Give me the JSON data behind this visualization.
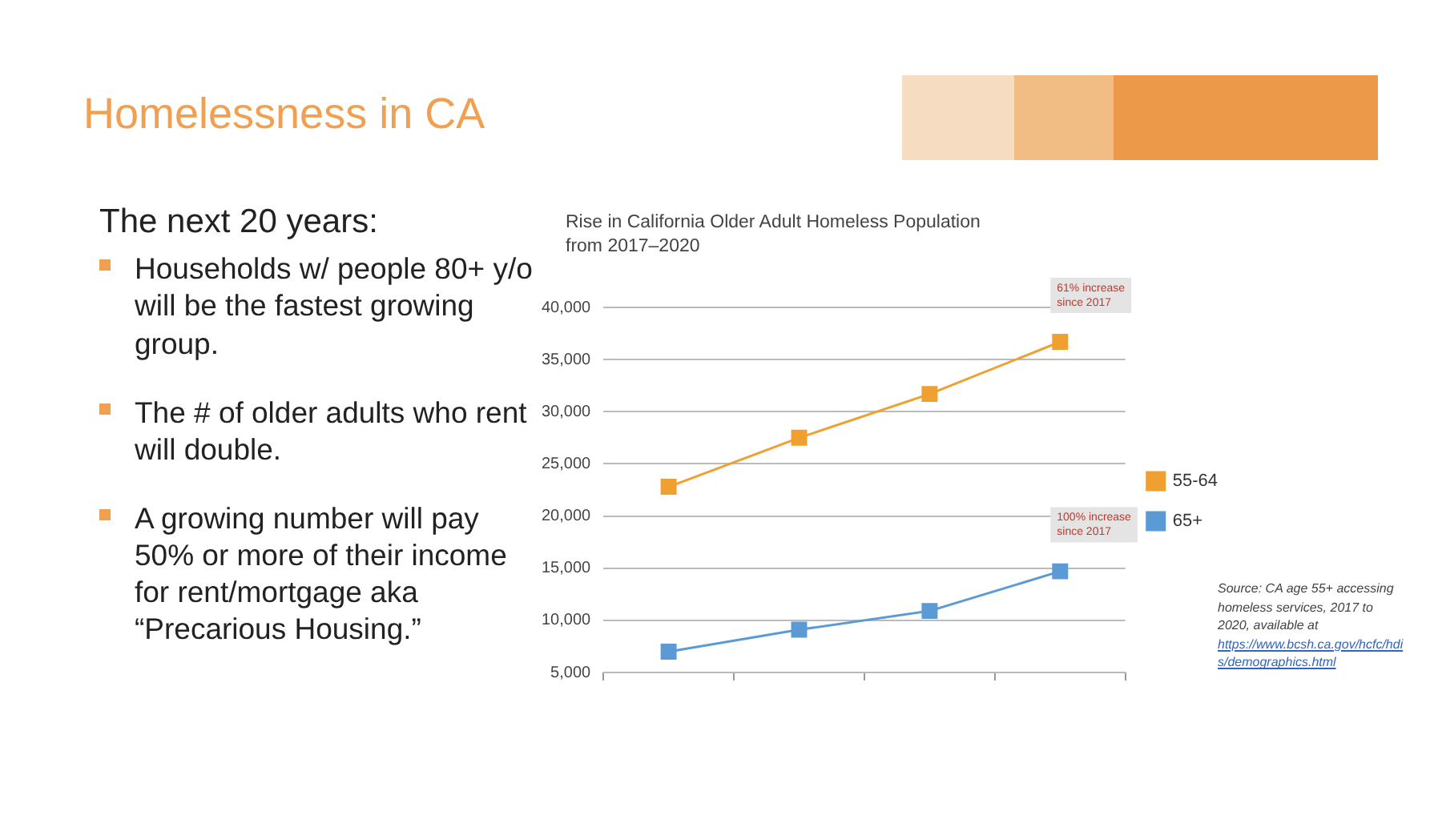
{
  "chart_data": {
    "type": "line",
    "title": "Homelessness in CA",
    "subtitle": "Rise in California Older Adult Homeless Population from 2017–2020",
    "categories": [
      null,
      null,
      null,
      null
    ],
    "series": [
      {
        "name": "55-64",
        "color": "#f0a030",
        "values": [
          22800,
          27500,
          31700,
          36700
        ]
      },
      {
        "name": "65+",
        "color": "#5b9bd5",
        "values": [
          7000,
          9100,
          10900,
          14700
        ]
      }
    ],
    "ylim": [
      5000,
      40000
    ],
    "yticks": [
      {
        "value": 5000,
        "label": "5,000"
      },
      {
        "value": 10000,
        "label": "10,000"
      },
      {
        "value": 15000,
        "label": "15,000"
      },
      {
        "value": 20000,
        "label": "20,000"
      },
      {
        "value": 25000,
        "label": "25,000"
      },
      {
        "value": 30000,
        "label": "30,000"
      },
      {
        "value": 35000,
        "label": "35,000"
      },
      {
        "value": 40000,
        "label": "40,000"
      }
    ],
    "grid": "y",
    "legend": "right",
    "marker": "square",
    "line_style": "solid",
    "tick_labels": "y",
    "annotations": [
      "The next 20 years:",
      "Households w/ people 80+ y/o will be the fastest growing group.",
      "The # of older adults who rent will double.",
      "A growing number will pay 50% or more of their income for rent/mortgage aka “Precarious Housing.”",
      "61% increase since 2017",
      "100% increase since 2017",
      "Source: CA age 55+ accessing homeless services, 2017 to 2020, available at https://www.bcsh.ca.gov/hcfc/hdis/demographics.html"
    ]
  }
}
